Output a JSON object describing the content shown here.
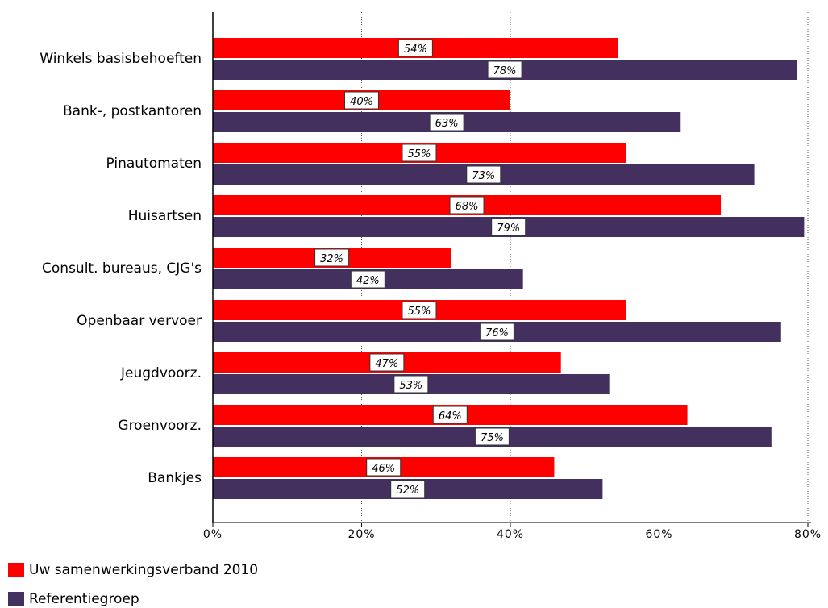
{
  "chart_data": {
    "type": "bar",
    "orientation": "horizontal",
    "categories": [
      "Winkels basisbehoeften",
      "Bank-, postkantoren",
      "Pinautomaten",
      "Huisartsen",
      "Consult. bureaus, CJG's",
      "Openbaar vervoer",
      "Jeugdvoorz.",
      "Groenvoorz.",
      "Bankjes"
    ],
    "series": [
      {
        "name": "Uw samenwerkingsverband 2010",
        "color": "#ff0000",
        "values": [
          54,
          40,
          55,
          68,
          32,
          55,
          47,
          64,
          46
        ],
        "plot_values": [
          54.5,
          40,
          55.5,
          68.3,
          32,
          55.5,
          46.8,
          63.8,
          45.9
        ]
      },
      {
        "name": "Referentiegroep",
        "color": "#43305f",
        "values": [
          78,
          63,
          73,
          79,
          42,
          76,
          53,
          75,
          52
        ],
        "plot_values": [
          78.5,
          62.9,
          72.8,
          79.5,
          41.7,
          76.4,
          53.3,
          75.1,
          52.4
        ]
      }
    ],
    "xlim": [
      0,
      80
    ],
    "x_ticks": [
      "0%",
      "20%",
      "40%",
      "60%",
      "80%"
    ],
    "grid": "vertical dotted at 20% steps",
    "legend": "bottom-left"
  }
}
